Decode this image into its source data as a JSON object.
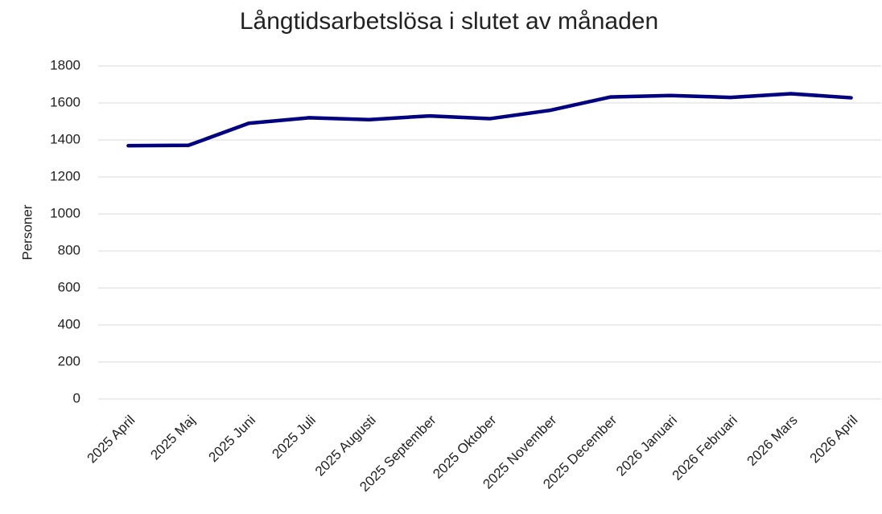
{
  "chart_data": {
    "type": "line",
    "title": "Långtidsarbetslösa i slutet av månaden",
    "y_label": "Personer",
    "categories": [
      "2025 April",
      "2025 Maj",
      "2025 Juni",
      "2025 Juli",
      "2025 Augusti",
      "2025 September",
      "2025 Oktober",
      "2025 November",
      "2025 December",
      "2026 Januari",
      "2026 Februari",
      "2026 Mars",
      "2026 April"
    ],
    "series": [
      {
        "name": "Långtidsarbetslösa",
        "color": "#000080",
        "values": [
          1369,
          1371,
          1490,
          1520,
          1510,
          1530,
          1515,
          1560,
          1632,
          1640,
          1630,
          1650,
          1628
        ]
      }
    ],
    "ylim": [
      0,
      1800
    ],
    "yticks": [
      0,
      200,
      400,
      600,
      800,
      1000,
      1200,
      1400,
      1600,
      1800
    ],
    "grid": true
  }
}
